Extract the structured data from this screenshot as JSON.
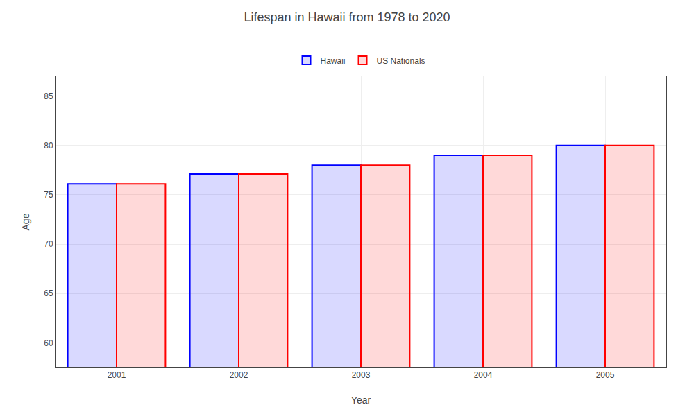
{
  "chart_data": {
    "type": "bar",
    "title": "Lifespan in Hawaii from 1978 to 2020",
    "xlabel": "Year",
    "ylabel": "Age",
    "categories": [
      "2001",
      "2002",
      "2003",
      "2004",
      "2005"
    ],
    "series": [
      {
        "name": "Hawaii",
        "color": "#0000ff",
        "values": [
          76.1,
          77.1,
          78.0,
          79.0,
          80.0
        ]
      },
      {
        "name": "US Nationals",
        "color": "#ff0000",
        "values": [
          76.1,
          77.1,
          78.0,
          79.0,
          80.0
        ]
      }
    ],
    "ylim": [
      57.5,
      87
    ],
    "yticks": [
      60,
      65,
      70,
      75,
      80,
      85
    ],
    "grid": true
  }
}
